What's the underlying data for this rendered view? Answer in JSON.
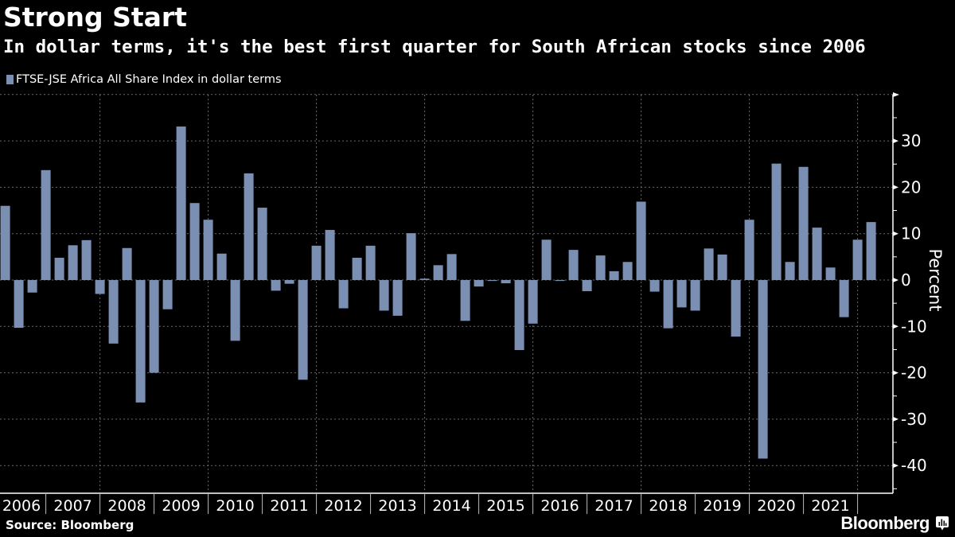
{
  "title": "Strong Start",
  "subtitle": "In dollar terms, it's the best first quarter for South African stocks since 2006",
  "legend": {
    "label": "FTSE-JSE Africa All Share Index in dollar terms",
    "color": "#7b8fb2"
  },
  "source": "Source: Bloomberg",
  "brand": {
    "name": "Bloomberg",
    "icon": "bloomberg-chart-bubble-icon"
  },
  "chart_data": {
    "type": "bar",
    "title": "Strong Start",
    "subtitle": "In dollar terms, it's the best first quarter for South African stocks since 2006",
    "xlabel": "",
    "ylabel": "Percent",
    "ylim": [
      -46,
      40
    ],
    "yticks": [
      30,
      20,
      10,
      0,
      -10,
      -20,
      -30,
      -40
    ],
    "ytick_labels": [
      "30",
      "20",
      "10",
      "0",
      "-10",
      "-20",
      "-30",
      "-40"
    ],
    "grid": true,
    "legend_position": "top-left",
    "x_axis_year_labels": [
      "2006",
      "2007",
      "2008",
      "2009",
      "2010",
      "2011",
      "2012",
      "2013",
      "2014",
      "2015",
      "2016",
      "2017",
      "2018",
      "2019",
      "2020",
      "2021"
    ],
    "frequency": "quarterly",
    "series": [
      {
        "name": "FTSE-JSE Africa All Share Index in dollar terms",
        "color": "#7b8fb2",
        "points": [
          {
            "period": "2006 Q1",
            "value": 16.0
          },
          {
            "period": "2006 Q2",
            "value": -10.3
          },
          {
            "period": "2006 Q3",
            "value": -2.7
          },
          {
            "period": "2006 Q4",
            "value": 23.7
          },
          {
            "period": "2007 Q1",
            "value": 4.8
          },
          {
            "period": "2007 Q2",
            "value": 7.5
          },
          {
            "period": "2007 Q3",
            "value": 8.6
          },
          {
            "period": "2007 Q4",
            "value": -3.0
          },
          {
            "period": "2008 Q1",
            "value": -13.7
          },
          {
            "period": "2008 Q2",
            "value": 6.9
          },
          {
            "period": "2008 Q3",
            "value": -26.4
          },
          {
            "period": "2008 Q4",
            "value": -20.0
          },
          {
            "period": "2009 Q1",
            "value": -6.3
          },
          {
            "period": "2009 Q2",
            "value": 33.1
          },
          {
            "period": "2009 Q3",
            "value": 16.6
          },
          {
            "period": "2009 Q4",
            "value": 13.0
          },
          {
            "period": "2010 Q1",
            "value": 5.7
          },
          {
            "period": "2010 Q2",
            "value": -13.1
          },
          {
            "period": "2010 Q3",
            "value": 23.0
          },
          {
            "period": "2010 Q4",
            "value": 15.6
          },
          {
            "period": "2011 Q1",
            "value": -2.3
          },
          {
            "period": "2011 Q2",
            "value": -0.8
          },
          {
            "period": "2011 Q3",
            "value": -21.5
          },
          {
            "period": "2011 Q4",
            "value": 7.4
          },
          {
            "period": "2012 Q1",
            "value": 10.8
          },
          {
            "period": "2012 Q2",
            "value": -6.1
          },
          {
            "period": "2012 Q3",
            "value": 4.8
          },
          {
            "period": "2012 Q4",
            "value": 7.4
          },
          {
            "period": "2013 Q1",
            "value": -6.6
          },
          {
            "period": "2013 Q2",
            "value": -7.7
          },
          {
            "period": "2013 Q3",
            "value": 10.1
          },
          {
            "period": "2013 Q4",
            "value": 0.3
          },
          {
            "period": "2014 Q1",
            "value": 3.2
          },
          {
            "period": "2014 Q2",
            "value": 5.6
          },
          {
            "period": "2014 Q3",
            "value": -8.8
          },
          {
            "period": "2014 Q4",
            "value": -1.4
          },
          {
            "period": "2015 Q1",
            "value": -0.2
          },
          {
            "period": "2015 Q2",
            "value": -0.7
          },
          {
            "period": "2015 Q3",
            "value": -15.1
          },
          {
            "period": "2015 Q4",
            "value": -9.4
          },
          {
            "period": "2016 Q1",
            "value": 8.7
          },
          {
            "period": "2016 Q2",
            "value": -0.2
          },
          {
            "period": "2016 Q3",
            "value": 6.5
          },
          {
            "period": "2016 Q4",
            "value": -2.4
          },
          {
            "period": "2017 Q1",
            "value": 5.3
          },
          {
            "period": "2017 Q2",
            "value": 1.9
          },
          {
            "period": "2017 Q3",
            "value": 3.9
          },
          {
            "period": "2017 Q4",
            "value": 16.9
          },
          {
            "period": "2018 Q1",
            "value": -2.5
          },
          {
            "period": "2018 Q2",
            "value": -10.4
          },
          {
            "period": "2018 Q3",
            "value": -5.9
          },
          {
            "period": "2018 Q4",
            "value": -6.6
          },
          {
            "period": "2019 Q1",
            "value": 6.8
          },
          {
            "period": "2019 Q2",
            "value": 5.5
          },
          {
            "period": "2019 Q3",
            "value": -12.2
          },
          {
            "period": "2019 Q4",
            "value": 13.0
          },
          {
            "period": "2020 Q1",
            "value": -38.5
          },
          {
            "period": "2020 Q2",
            "value": 25.1
          },
          {
            "period": "2020 Q3",
            "value": 3.9
          },
          {
            "period": "2020 Q4",
            "value": 24.4
          },
          {
            "period": "2021 Q1",
            "value": 11.3
          },
          {
            "period": "2021 Q2",
            "value": 2.7
          },
          {
            "period": "2021 Q3",
            "value": -8.0
          },
          {
            "period": "2021 Q4",
            "value": 8.7
          },
          {
            "period": "2022 Q1",
            "value": 12.5
          }
        ]
      }
    ]
  }
}
